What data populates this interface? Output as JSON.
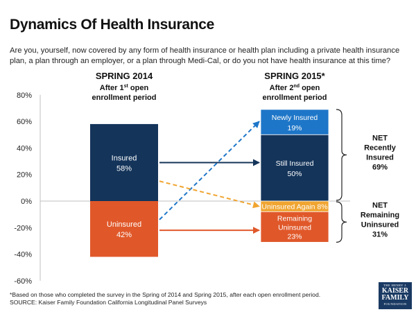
{
  "title": "Dynamics Of Health Insurance",
  "question": "Are you, yourself, now covered by any form of health insurance or health plan including a private health insurance plan, a plan through an employer, or a plan through Medi-Cal, or do you not have health insurance at this time?",
  "chart_data": {
    "type": "bar",
    "ylim": [
      -60,
      80
    ],
    "y_ticks": [
      80,
      60,
      40,
      20,
      0,
      -20,
      -40,
      -60
    ],
    "y_tick_labels": [
      "80%",
      "60%",
      "40%",
      "20%",
      "0%",
      "-20%",
      "-40%",
      "-60%"
    ],
    "spring2014": {
      "heading": "SPRING 2014",
      "subheading_pre": "After 1",
      "subheading_sup": "st",
      "subheading_post": " open",
      "subheading_line2": "enrollment period",
      "segments": [
        {
          "name": "Insured",
          "pct_label": "58%",
          "value": 58,
          "color": "#14345a"
        },
        {
          "name": "Uninsured",
          "pct_label": "42%",
          "value": -42,
          "color": "#e0582a"
        }
      ]
    },
    "spring2015": {
      "heading": "SPRING 2015*",
      "subheading_pre": "After 2",
      "subheading_sup": "nd",
      "subheading_post": " open",
      "subheading_line2": "enrollment period",
      "segments": [
        {
          "name": "Still Insured",
          "pct_label": "50%",
          "value": 50,
          "base": 0,
          "color": "#14345a"
        },
        {
          "name": "Newly Insured",
          "pct_label": "19%",
          "value": 19,
          "base": 50,
          "color": "#1e76c8"
        },
        {
          "name": "Uninsured Again",
          "pct_label": "8%",
          "value": -8,
          "base": 0,
          "color": "#f0a531"
        },
        {
          "name": "Remaining Uninsured",
          "pct_label": "23%",
          "value": -23,
          "base": -8,
          "color": "#e0582a"
        }
      ]
    },
    "net": [
      {
        "line1": "NET",
        "line2": "Recently",
        "line3": "Insured",
        "value_label": "69%",
        "value": 69
      },
      {
        "line1": "NET",
        "line2": "Remaining",
        "line3": "Uninsured",
        "value_label": "31%",
        "value": -31
      }
    ],
    "flows": [
      {
        "from": "Insured",
        "to": "Still Insured",
        "style": "solid",
        "color": "#14345a"
      },
      {
        "from": "Uninsured",
        "to": "Newly Insured",
        "style": "dashed",
        "color": "#1e76c8"
      },
      {
        "from": "Insured",
        "to": "Uninsured Again",
        "style": "dashed",
        "color": "#f0a531"
      },
      {
        "from": "Uninsured",
        "to": "Remaining Uninsured",
        "style": "solid",
        "color": "#e0582a"
      }
    ]
  },
  "footnote_line1": "*Based on those who completed the survey in the Spring of 2014  and Spring 2015, after each open enrollment period.",
  "footnote_line2": "SOURCE: Kaiser Family Foundation California Longitudinal Panel Surveys",
  "logo": {
    "line1": "THE HENRY J.",
    "line2": "KAISER",
    "line3": "FAMILY",
    "line4": "FOUNDATION"
  }
}
